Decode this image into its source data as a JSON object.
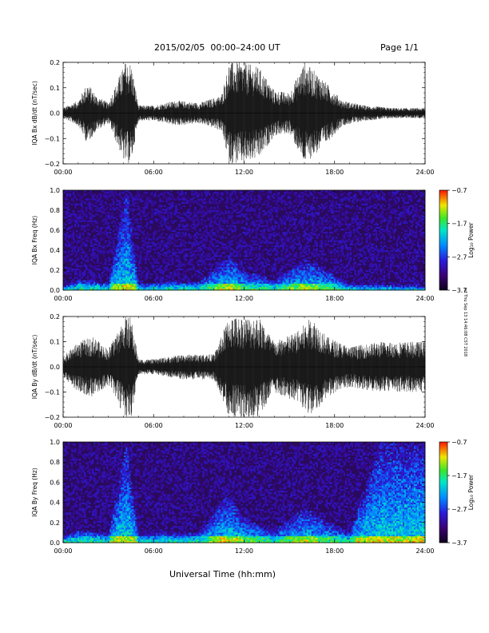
{
  "header": {
    "title": "2015/02/05  00:00–24:00 UT",
    "page": "Page 1/1"
  },
  "footer": {
    "xlabel": "Universal Time (hh:mm)"
  },
  "side_stamp": "rcf Thu Sep 13 14:46:08 CST 2018",
  "colors": {
    "waveform": "#000000",
    "spectrogram_background": "#2a0a5c"
  },
  "chart_data": [
    {
      "type": "line",
      "ylabel": "IQA Bx dB/dt (nT/sec)",
      "xticks": [
        "00:00",
        "06:00",
        "12:00",
        "18:00",
        "24:00"
      ],
      "yticks": [
        "0.2",
        "0.1",
        "0.0",
        "−0.1",
        "−0.2"
      ],
      "xlim": [
        0,
        24
      ],
      "ylim": [
        -0.2,
        0.2
      ],
      "envelope": [
        {
          "t": 0.0,
          "amp": 0.02
        },
        {
          "t": 1.0,
          "amp": 0.05
        },
        {
          "t": 1.6,
          "amp": 0.12
        },
        {
          "t": 2.2,
          "amp": 0.07
        },
        {
          "t": 3.0,
          "amp": 0.04
        },
        {
          "t": 4.1,
          "amp": 0.2
        },
        {
          "t": 4.5,
          "amp": 0.2
        },
        {
          "t": 5.0,
          "amp": 0.03
        },
        {
          "t": 6.0,
          "amp": 0.03
        },
        {
          "t": 7.5,
          "amp": 0.05
        },
        {
          "t": 9.0,
          "amp": 0.04
        },
        {
          "t": 10.5,
          "amp": 0.07
        },
        {
          "t": 11.0,
          "amp": 0.2
        },
        {
          "t": 12.0,
          "amp": 0.2
        },
        {
          "t": 13.0,
          "amp": 0.18
        },
        {
          "t": 14.0,
          "amp": 0.09
        },
        {
          "t": 15.0,
          "amp": 0.08
        },
        {
          "t": 16.0,
          "amp": 0.2
        },
        {
          "t": 17.0,
          "amp": 0.15
        },
        {
          "t": 18.5,
          "amp": 0.05
        },
        {
          "t": 20.0,
          "amp": 0.03
        },
        {
          "t": 22.0,
          "amp": 0.02
        },
        {
          "t": 24.0,
          "amp": 0.02
        }
      ]
    },
    {
      "type": "heatmap",
      "ylabel": "IQA Bx Freq (Hz)",
      "xticks": [
        "00:00",
        "06:00",
        "12:00",
        "18:00",
        "24:00"
      ],
      "yticks": [
        "1.0",
        "0.8",
        "0.6",
        "0.4",
        "0.2",
        "0.0"
      ],
      "xlim": [
        0,
        24
      ],
      "ylim": [
        0.0,
        1.0
      ],
      "colorbar": {
        "label": "Log₁₀ Power",
        "ticks": [
          "−0.7",
          "−1.7",
          "−2.7",
          "−3.7"
        ],
        "range": [
          -3.7,
          -0.7
        ]
      },
      "activity": [
        {
          "t": 0.0,
          "f": 0.04
        },
        {
          "t": 1.0,
          "f": 0.1
        },
        {
          "t": 2.0,
          "f": 0.1
        },
        {
          "t": 3.0,
          "f": 0.06
        },
        {
          "t": 4.2,
          "f": 1.0
        },
        {
          "t": 5.0,
          "f": 0.06
        },
        {
          "t": 7.0,
          "f": 0.08
        },
        {
          "t": 9.0,
          "f": 0.08
        },
        {
          "t": 11.0,
          "f": 0.35
        },
        {
          "t": 12.0,
          "f": 0.2
        },
        {
          "t": 14.0,
          "f": 0.1
        },
        {
          "t": 16.0,
          "f": 0.3
        },
        {
          "t": 17.0,
          "f": 0.25
        },
        {
          "t": 19.0,
          "f": 0.06
        },
        {
          "t": 24.0,
          "f": 0.04
        }
      ]
    },
    {
      "type": "line",
      "ylabel": "IQA By dB/dt (nT/sec)",
      "xticks": [
        "00:00",
        "06:00",
        "12:00",
        "18:00",
        "24:00"
      ],
      "yticks": [
        "0.2",
        "0.1",
        "0.0",
        "−0.1",
        "−0.2"
      ],
      "xlim": [
        0,
        24
      ],
      "ylim": [
        -0.2,
        0.2
      ],
      "envelope": [
        {
          "t": 0.0,
          "amp": 0.04
        },
        {
          "t": 1.0,
          "amp": 0.1
        },
        {
          "t": 2.0,
          "amp": 0.12
        },
        {
          "t": 3.0,
          "amp": 0.07
        },
        {
          "t": 4.1,
          "amp": 0.2
        },
        {
          "t": 4.5,
          "amp": 0.2
        },
        {
          "t": 5.0,
          "amp": 0.03
        },
        {
          "t": 6.0,
          "amp": 0.03
        },
        {
          "t": 8.0,
          "amp": 0.05
        },
        {
          "t": 10.0,
          "amp": 0.05
        },
        {
          "t": 11.0,
          "amp": 0.2
        },
        {
          "t": 12.0,
          "amp": 0.2
        },
        {
          "t": 13.0,
          "amp": 0.2
        },
        {
          "t": 14.0,
          "amp": 0.1
        },
        {
          "t": 15.5,
          "amp": 0.14
        },
        {
          "t": 16.5,
          "amp": 0.2
        },
        {
          "t": 17.5,
          "amp": 0.12
        },
        {
          "t": 19.0,
          "amp": 0.08
        },
        {
          "t": 21.0,
          "amp": 0.1
        },
        {
          "t": 22.0,
          "amp": 0.1
        },
        {
          "t": 24.0,
          "amp": 0.1
        }
      ]
    },
    {
      "type": "heatmap",
      "ylabel": "IQA By Freq (Hz)",
      "xticks": [
        "00:00",
        "06:00",
        "12:00",
        "18:00",
        "24:00"
      ],
      "yticks": [
        "1.0",
        "0.8",
        "0.6",
        "0.4",
        "0.2",
        "0.0"
      ],
      "xlim": [
        0,
        24
      ],
      "ylim": [
        0.0,
        1.0
      ],
      "colorbar": {
        "label": "Log₁₀ Power",
        "ticks": [
          "−0.7",
          "−1.7",
          "−2.7",
          "−3.7"
        ],
        "range": [
          -3.7,
          -0.7
        ]
      },
      "activity": [
        {
          "t": 0.0,
          "f": 0.06
        },
        {
          "t": 1.0,
          "f": 0.12
        },
        {
          "t": 2.0,
          "f": 0.12
        },
        {
          "t": 3.0,
          "f": 0.08
        },
        {
          "t": 4.2,
          "f": 1.0
        },
        {
          "t": 5.0,
          "f": 0.08
        },
        {
          "t": 7.0,
          "f": 0.1
        },
        {
          "t": 9.0,
          "f": 0.1
        },
        {
          "t": 11.0,
          "f": 0.5
        },
        {
          "t": 12.0,
          "f": 0.25
        },
        {
          "t": 14.0,
          "f": 0.12
        },
        {
          "t": 16.0,
          "f": 0.35
        },
        {
          "t": 17.0,
          "f": 0.25
        },
        {
          "t": 19.0,
          "f": 0.1
        },
        {
          "t": 21.0,
          "f": 1.0
        },
        {
          "t": 24.0,
          "f": 1.0
        }
      ]
    }
  ]
}
